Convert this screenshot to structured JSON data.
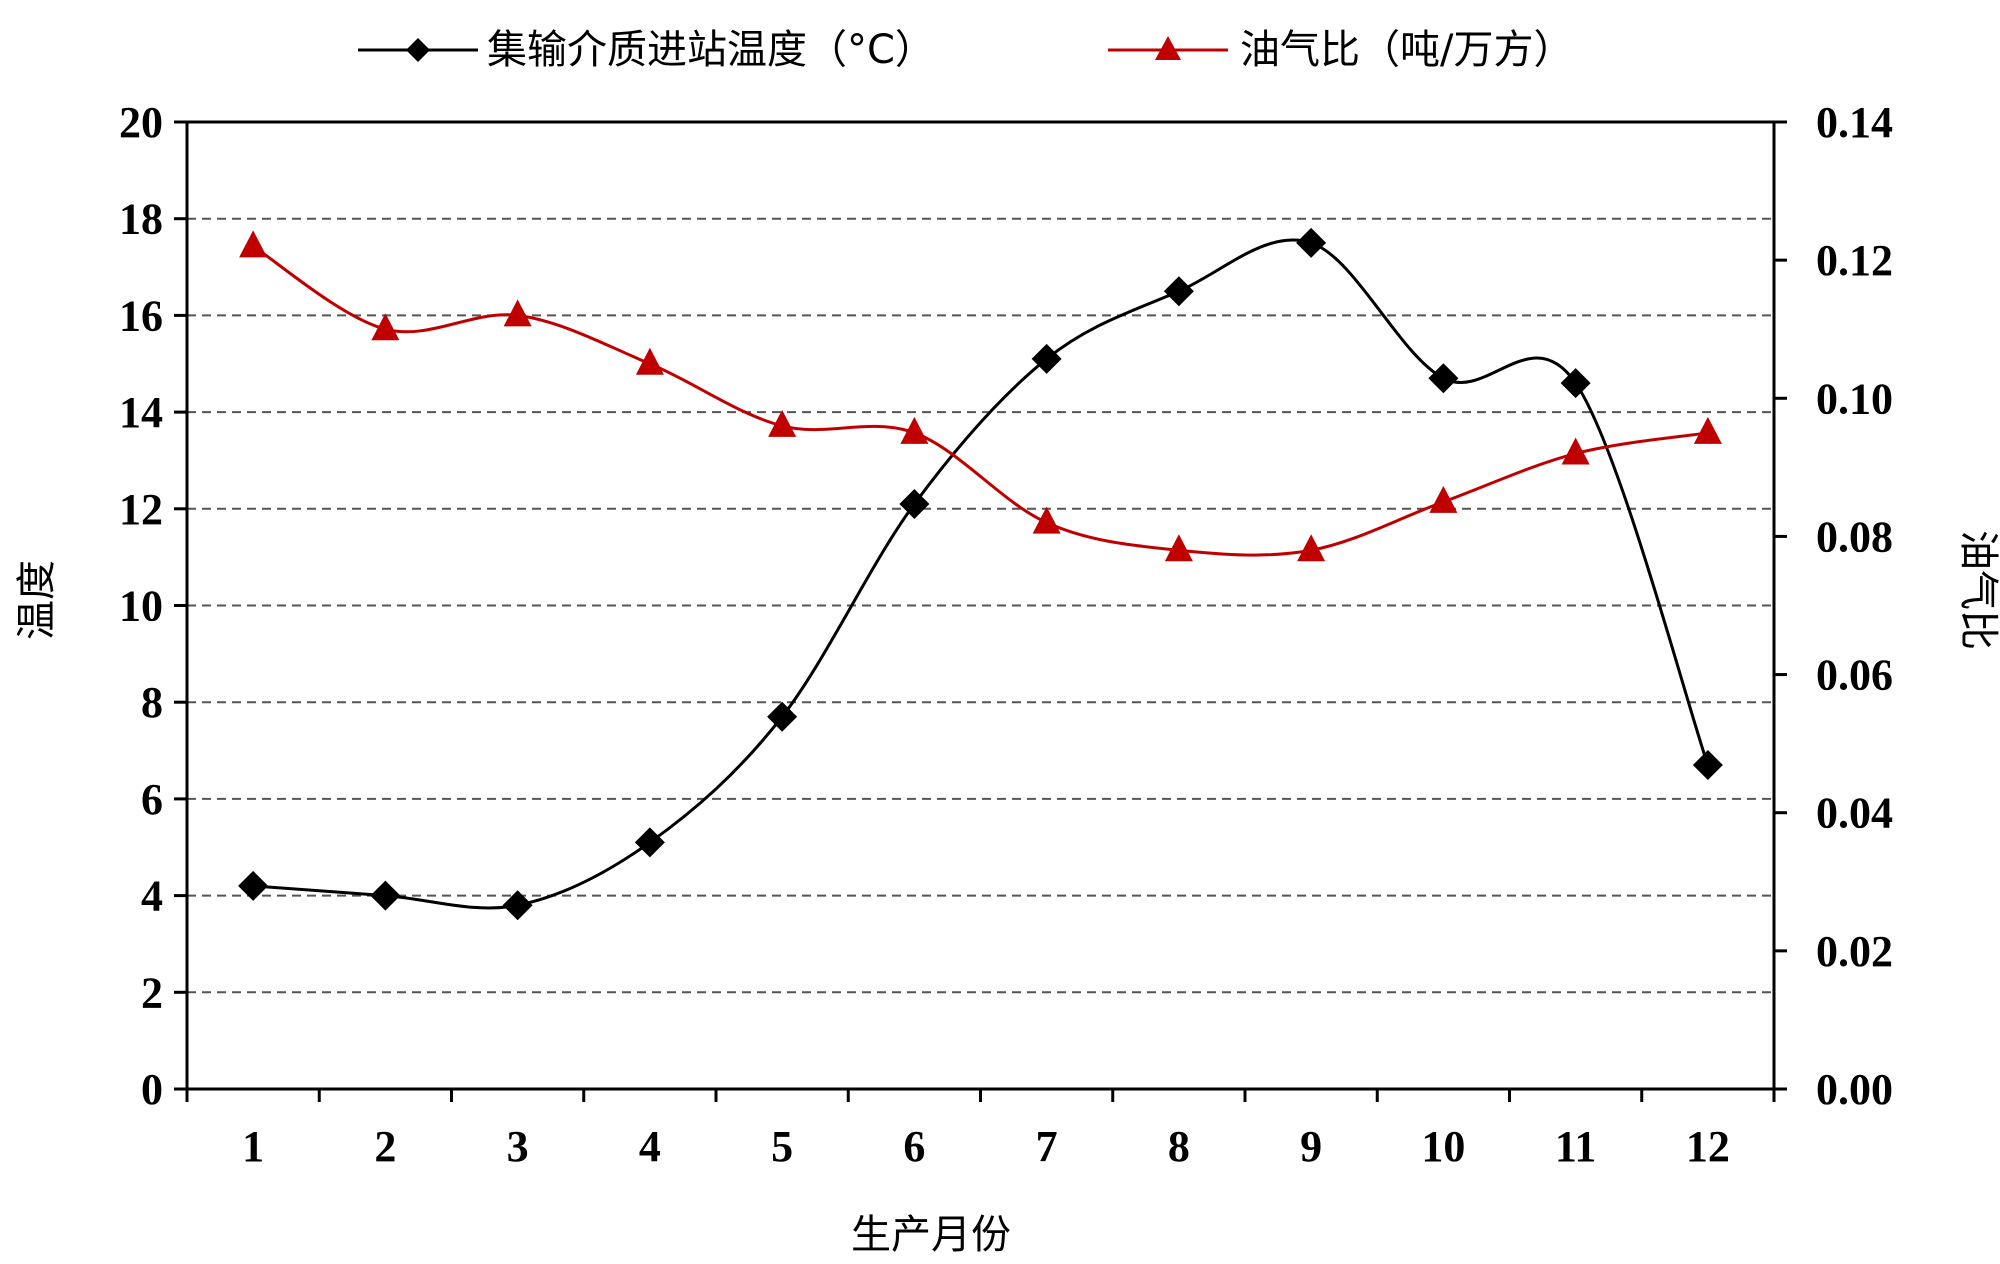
{
  "chart_data": {
    "type": "line",
    "categories": [
      "1",
      "2",
      "3",
      "4",
      "5",
      "6",
      "7",
      "8",
      "9",
      "10",
      "11",
      "12"
    ],
    "xlabel": "生产月份",
    "ylabel_left": "温度",
    "ylabel_right": "油气比",
    "ylim_left": [
      0,
      20
    ],
    "ylim_right": [
      0,
      0.14
    ],
    "yticks_left": [
      "0",
      "2",
      "4",
      "6",
      "8",
      "10",
      "12",
      "14",
      "16",
      "18",
      "20"
    ],
    "yticks_right": [
      "0.00",
      "0.02",
      "0.04",
      "0.06",
      "0.08",
      "0.10",
      "0.12",
      "0.14"
    ],
    "grid": "horizontal dashed",
    "legend_position": "top",
    "series": [
      {
        "name": "集输介质进站温度（°C）",
        "axis": "left",
        "color": "#000000",
        "marker": "diamond",
        "values": [
          4.2,
          4.0,
          3.8,
          5.1,
          7.7,
          12.1,
          15.1,
          16.5,
          17.5,
          14.7,
          14.6,
          6.7
        ]
      },
      {
        "name": "油气比（吨/万方）",
        "axis": "right",
        "color": "#c00000",
        "marker": "triangle",
        "values": [
          0.122,
          0.11,
          0.112,
          0.105,
          0.096,
          0.095,
          0.082,
          0.078,
          0.078,
          0.085,
          0.092,
          0.095
        ]
      }
    ]
  }
}
